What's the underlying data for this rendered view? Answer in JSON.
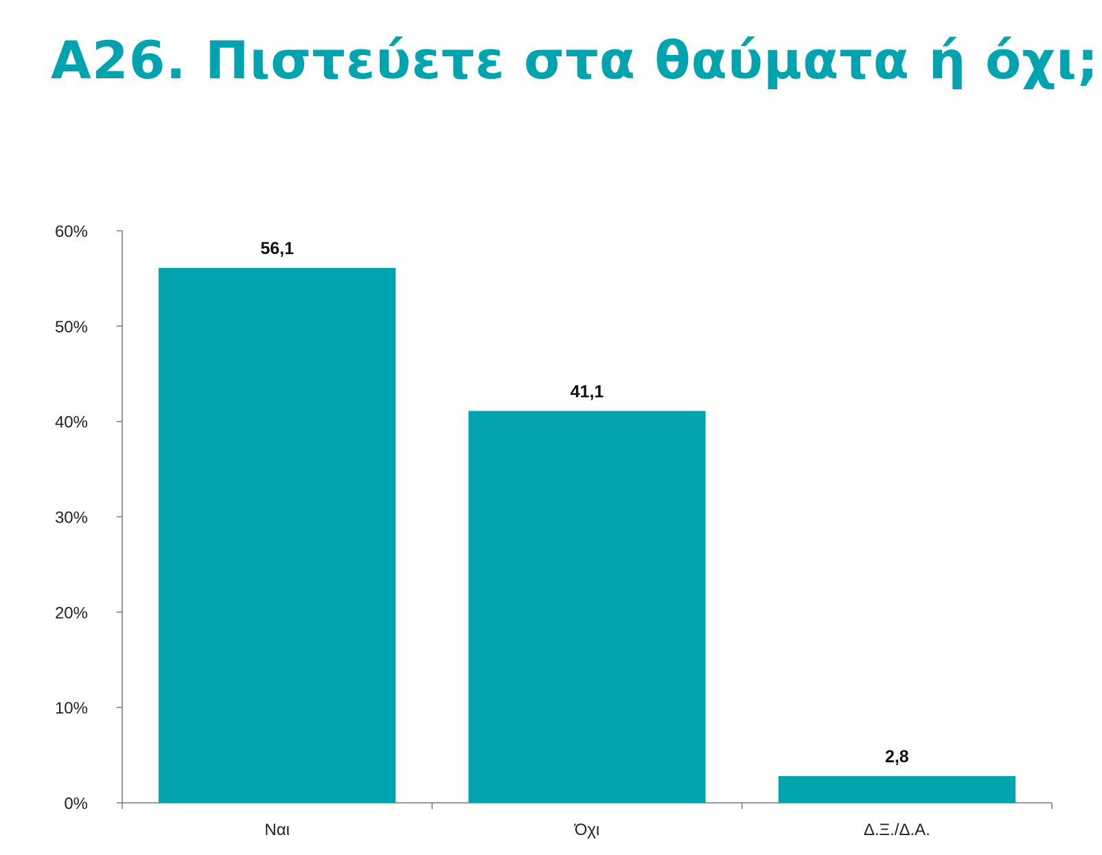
{
  "colors": {
    "accent": "#00A3AE",
    "axis": "#777777"
  },
  "chart_data": {
    "type": "bar",
    "title": "Α26. Πιστεύετε στα θαύματα ή όχι;",
    "xlabel": "",
    "ylabel": "",
    "categories": [
      "Ναι",
      "Όχι",
      "Δ.Ξ./Δ.Α."
    ],
    "values": [
      56.1,
      41.1,
      2.8
    ],
    "data_labels": [
      "56,1",
      "41,1",
      "2,8"
    ],
    "ylim": [
      0,
      60
    ],
    "yticks": [
      0,
      10,
      20,
      30,
      40,
      50,
      60
    ],
    "ytick_labels": [
      "0%",
      "10%",
      "20%",
      "30%",
      "40%",
      "50%",
      "60%"
    ],
    "grid": false,
    "legend": "none"
  }
}
